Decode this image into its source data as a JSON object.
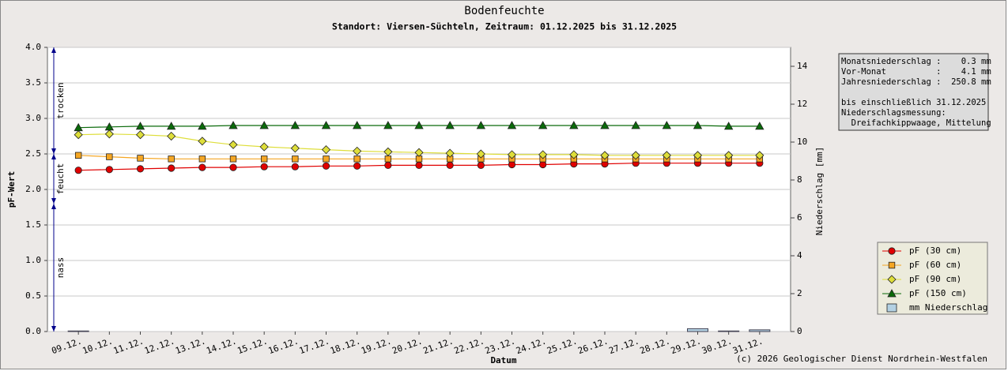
{
  "chart_data": {
    "type": "line",
    "title": "Bodenfeuchte",
    "subtitle": "Standort: Viersen-Süchteln, Zeitraum: 01.12.2025 bis 31.12.2025",
    "xlabel": "Datum",
    "ylabel": "pF-Wert",
    "y2label": "Niederschlag [mm]",
    "categories": [
      "09.12.",
      "10.12.",
      "11.12.",
      "12.12.",
      "13.12.",
      "14.12.",
      "15.12.",
      "16.12.",
      "17.12.",
      "18.12.",
      "19.12.",
      "20.12.",
      "21.12.",
      "22.12.",
      "23.12.",
      "24.12.",
      "25.12.",
      "26.12.",
      "27.12.",
      "28.12.",
      "29.12.",
      "30.12.",
      "31.12."
    ],
    "ylim": [
      0,
      4
    ],
    "yticks": [
      {
        "value": 0,
        "label": "0.0"
      },
      {
        "value": 0.5,
        "label": "0.5"
      },
      {
        "value": 1,
        "label": "1.0"
      },
      {
        "value": 1.5,
        "label": "1.5"
      },
      {
        "value": 2,
        "label": "2.0"
      },
      {
        "value": 2.5,
        "label": "2.5"
      },
      {
        "value": 3,
        "label": "3.0"
      },
      {
        "value": 3.5,
        "label": "3.5"
      },
      {
        "value": 4,
        "label": "4.0"
      }
    ],
    "y2lim": [
      0,
      15
    ],
    "y2ticks": [
      0,
      2,
      4,
      6,
      8,
      10,
      12,
      14
    ],
    "grid": true,
    "legend": "lower right",
    "series": [
      {
        "name": "pF (30 cm)",
        "color": "#e00000",
        "marker": "circle",
        "values": [
          2.27,
          2.28,
          2.29,
          2.3,
          2.31,
          2.31,
          2.32,
          2.32,
          2.33,
          2.33,
          2.34,
          2.34,
          2.34,
          2.34,
          2.35,
          2.35,
          2.36,
          2.36,
          2.37,
          2.37,
          2.37,
          2.37,
          2.37
        ]
      },
      {
        "name": "pF (60 cm)",
        "color": "#f5a623",
        "marker": "square",
        "values": [
          2.48,
          2.46,
          2.44,
          2.43,
          2.43,
          2.43,
          2.43,
          2.43,
          2.43,
          2.43,
          2.43,
          2.43,
          2.43,
          2.43,
          2.43,
          2.43,
          2.43,
          2.43,
          2.43,
          2.43,
          2.43,
          2.43,
          2.43
        ]
      },
      {
        "name": "pF (90 cm)",
        "color": "#dede3a",
        "marker": "diamond",
        "values": [
          2.77,
          2.78,
          2.77,
          2.75,
          2.68,
          2.63,
          2.6,
          2.58,
          2.56,
          2.54,
          2.53,
          2.52,
          2.51,
          2.5,
          2.49,
          2.49,
          2.49,
          2.48,
          2.48,
          2.48,
          2.48,
          2.48,
          2.48
        ]
      },
      {
        "name": "pF (150 cm)",
        "color": "#0a6a0a",
        "marker": "triangle",
        "values": [
          2.87,
          2.88,
          2.89,
          2.89,
          2.89,
          2.9,
          2.9,
          2.9,
          2.9,
          2.9,
          2.9,
          2.9,
          2.9,
          2.9,
          2.9,
          2.9,
          2.9,
          2.9,
          2.9,
          2.9,
          2.9,
          2.89,
          2.89
        ]
      },
      {
        "name": "mm  Niederschlag",
        "color": "#b3d1e3",
        "marker": "bar",
        "type": "bar",
        "axis": "y2",
        "values": [
          0.03,
          0,
          0,
          0,
          0,
          0,
          0,
          0,
          0,
          0,
          0,
          0,
          0,
          0,
          0,
          0,
          0,
          0,
          0,
          0,
          0.15,
          0.03,
          0.09
        ]
      }
    ],
    "zones": [
      {
        "label": "trocken",
        "from": 2.5,
        "to": 4
      },
      {
        "label": "feucht",
        "from": 1.8,
        "to": 2.5
      },
      {
        "label": "nass",
        "from": 0,
        "to": 1.8
      }
    ],
    "info_box": [
      "Monatsniederschlag :    0.3 mm",
      "Vor-Monat          :    4.1 mm",
      "Jahresniederschlag :  250.8 mm",
      "",
      "bis einschließlich 31.12.2025",
      "Niederschlagsmessung:",
      "  Dreifachkippwaage, Mittelung"
    ],
    "footer": "(c) 2026 Geologischer Dienst Nordrhein-Westfalen"
  }
}
